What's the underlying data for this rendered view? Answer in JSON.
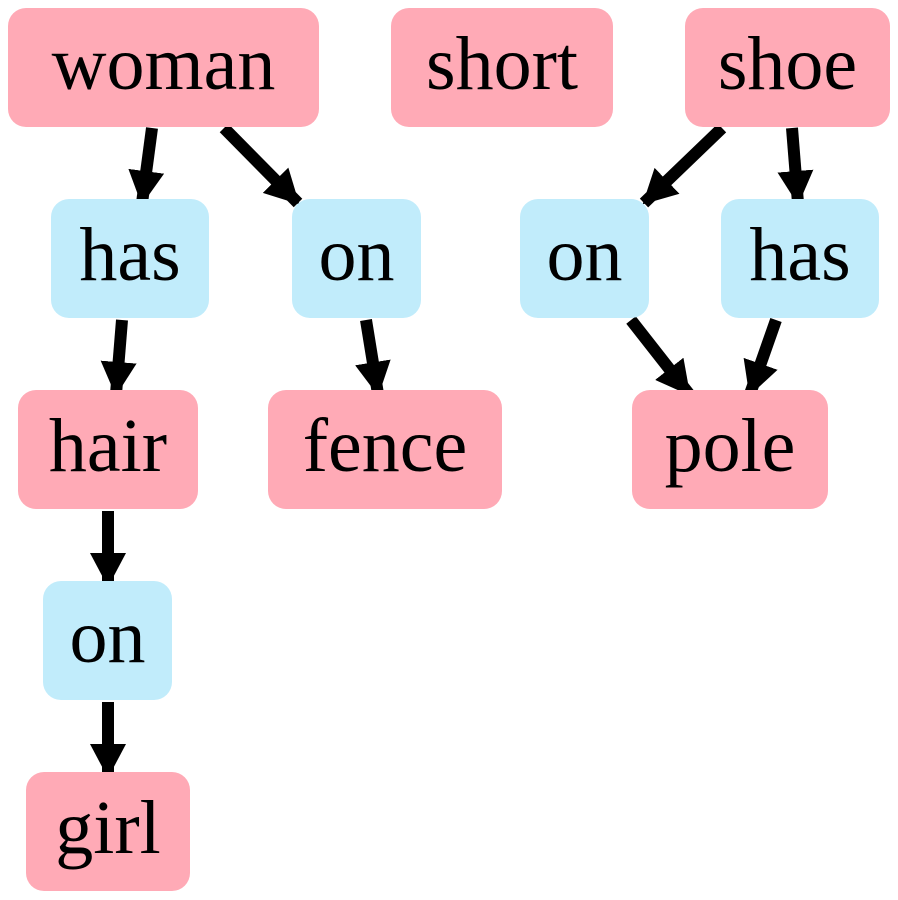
{
  "colors": {
    "object_fill": "#ffaab6",
    "relation_fill": "#c1ecfb",
    "edge": "#000000",
    "text": "#000000"
  },
  "nodes": {
    "woman": {
      "label": "woman",
      "kind": "object"
    },
    "short": {
      "label": "short",
      "kind": "object"
    },
    "shoe": {
      "label": "shoe",
      "kind": "object"
    },
    "has_1": {
      "label": "has",
      "kind": "relation"
    },
    "on_1": {
      "label": "on",
      "kind": "relation"
    },
    "on_2": {
      "label": "on",
      "kind": "relation"
    },
    "has_2": {
      "label": "has",
      "kind": "relation"
    },
    "hair": {
      "label": "hair",
      "kind": "object"
    },
    "fence": {
      "label": "fence",
      "kind": "object"
    },
    "pole": {
      "label": "pole",
      "kind": "object"
    },
    "on_3": {
      "label": "on",
      "kind": "relation"
    },
    "girl": {
      "label": "girl",
      "kind": "object"
    }
  },
  "edges": [
    {
      "from": "woman",
      "to": "has_1"
    },
    {
      "from": "woman",
      "to": "on_1"
    },
    {
      "from": "shoe",
      "to": "on_2"
    },
    {
      "from": "shoe",
      "to": "has_2"
    },
    {
      "from": "has_1",
      "to": "hair"
    },
    {
      "from": "on_1",
      "to": "fence"
    },
    {
      "from": "on_2",
      "to": "pole"
    },
    {
      "from": "has_2",
      "to": "pole"
    },
    {
      "from": "hair",
      "to": "on_3"
    },
    {
      "from": "on_3",
      "to": "girl"
    }
  ]
}
